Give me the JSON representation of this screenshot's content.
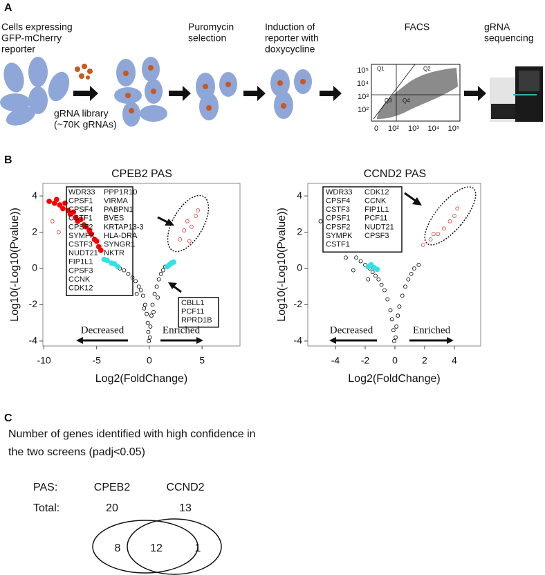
{
  "panel_a": {
    "label": "A",
    "step_cells": [
      "Cells expressing",
      "GFP-mCherry",
      "reporter"
    ],
    "library": [
      "gRNA library",
      "(~70K gRNAs)"
    ],
    "step_puromycin": [
      "Puromycin",
      "selection"
    ],
    "step_induction": [
      "Induction of",
      "reporter with",
      "doxycycline"
    ],
    "facs": {
      "title": "FACS",
      "quadrants": [
        "Q1",
        "Q2",
        "Q3",
        "Q4"
      ],
      "x_tick_labels": [
        "0",
        "10²",
        "10³",
        "10⁴",
        "10⁵"
      ],
      "y_tick_labels": [
        "10⁵",
        "10⁴",
        "10³",
        "10²"
      ]
    },
    "step_sequencing": [
      "gRNA",
      "sequencing"
    ]
  },
  "panel_b_label": "B",
  "chart_data": [
    {
      "type": "scatter",
      "title": "CPEB2 PAS",
      "x_label": "Log2(FoldChange)",
      "y_label": "Log10(-Log10(Pvalue))",
      "xlim": [
        -10.1,
        8.6
      ],
      "ylim": [
        -4.27,
        4.69
      ],
      "xticks": [
        -10,
        -5,
        0,
        5
      ],
      "yticks": [
        -4,
        -2,
        0,
        2,
        4
      ],
      "series": [
        {
          "color": "#000000",
          "marker": "open",
          "x": [
            -0.05,
            -0.1,
            -0.15,
            -0.25,
            -0.4,
            -0.6,
            -0.8,
            -1.0,
            -1.3,
            -1.6,
            -2.0,
            -2.4,
            -2.8,
            0.05,
            0.1,
            0.2,
            0.3,
            0.5,
            0.7,
            0.9,
            1.1,
            1.3,
            1.5,
            -1.2,
            0.8,
            -0.5,
            0.4
          ],
          "values": [
            -4,
            -3.5,
            -3,
            -2.5,
            -2,
            -1.5,
            -1.2,
            -1,
            -0.7,
            -0.5,
            -0.3,
            -0.1,
            0,
            -3.8,
            -3.2,
            -2.6,
            -2,
            -1.4,
            -1,
            -0.6,
            -0.3,
            -0.1,
            0.1,
            -1.4,
            -1.6,
            -2.2,
            -2.4
          ]
        },
        {
          "color": "#33e0e6",
          "marker": "filled",
          "x": [
            -3,
            -3.3,
            -3.6,
            -4,
            -4.3,
            1.7,
            1.9,
            2.1,
            2.3
          ],
          "values": [
            0.1,
            0.25,
            0.3,
            0.45,
            0.5,
            0.1,
            0.2,
            0.3,
            0.35
          ]
        },
        {
          "color": "#ff0000",
          "marker": "filled",
          "x": [
            -9.5,
            -9,
            -8.8,
            -8.5,
            -8.2,
            -8,
            -7.7,
            -7.5,
            -7.2,
            -7,
            -6.8,
            -6.5,
            -6.2,
            -6,
            -5.7,
            -5.5,
            -5.2,
            -5,
            -4.8,
            -4.6
          ],
          "values": [
            3.7,
            3.6,
            3.8,
            3.5,
            3.3,
            3.6,
            3.2,
            3.0,
            3.1,
            2.8,
            2.6,
            2.7,
            2.4,
            2.3,
            2.1,
            1.9,
            1.6,
            1.5,
            1.2,
            1.0
          ]
        },
        {
          "color": "#e04040",
          "marker": "open",
          "x": [
            2.9,
            3.3,
            3.6,
            4.0,
            4.4,
            4.6,
            3.8,
            -9.2,
            -8.6
          ],
          "values": [
            1.6,
            2.1,
            2.6,
            2.3,
            2.9,
            3.2,
            1.5,
            2.6,
            2.0
          ]
        }
      ],
      "gene_box": [
        [
          "WDR33",
          "CPSF1",
          "CPSF4",
          "CSTF1",
          "CPSF2",
          "SYMPK",
          "CSTF3",
          "NUDT21",
          "FIP1L1",
          "CPSF3",
          "CCNK",
          "CDK12"
        ],
        [
          "PPP1R10",
          "VIRMA",
          "PABPN1",
          "BVES",
          "KRTAP13-3",
          "HLA-DRA",
          "SYNGR1",
          "NKTR"
        ]
      ],
      "enriched_box": [
        "CBLL1",
        "PCF11",
        "RPRD1B"
      ],
      "decreased": "Decreased",
      "enriched": "Enriched"
    },
    {
      "type": "scatter",
      "title": "CCND2 PAS",
      "x_label": "Log2(FoldChange)",
      "y_label": "Log10(-Log10(Pvalue))",
      "xlim": [
        -5.86,
        5.77
      ],
      "ylim": [
        -4.27,
        4.69
      ],
      "xticks": [
        -4,
        -2,
        0,
        2,
        4
      ],
      "yticks": [
        -4,
        -2,
        0,
        2,
        4
      ],
      "series": [
        {
          "color": "#000000",
          "marker": "open",
          "x": [
            -0.05,
            -0.1,
            -0.2,
            -0.3,
            -0.5,
            -0.7,
            -0.9,
            -1.1,
            -1.3,
            -1.5,
            -1.7,
            -2,
            -2.3,
            -2.6,
            0.05,
            0.1,
            0.2,
            0.3,
            0.5,
            0.7,
            0.9,
            1.1,
            1.3,
            1.6,
            -1.8,
            -3.3,
            -5,
            -2.8
          ],
          "values": [
            -4,
            -3.4,
            -2.8,
            -2.3,
            -1.7,
            -1.2,
            -0.9,
            -0.6,
            -0.4,
            -0.2,
            0,
            0.2,
            0.4,
            0.6,
            -3.8,
            -3.2,
            -2.6,
            -2.1,
            -1.5,
            -1,
            -0.6,
            -0.3,
            0,
            0.2,
            -0.6,
            0.6,
            2.6,
            -0.1
          ]
        },
        {
          "color": "#33e0e6",
          "marker": "filled",
          "x": [
            -1.8,
            -1.6,
            -1.4,
            -1.2
          ],
          "values": [
            0.1,
            0.2,
            0.05,
            -0.05
          ]
        },
        {
          "color": "#e04040",
          "marker": "open",
          "x": [
            1.9,
            2.4,
            2.9,
            3.3,
            3.7,
            4.0,
            4.2,
            2.6
          ],
          "values": [
            1.3,
            1.6,
            1.9,
            2.2,
            2.6,
            2.9,
            3.3,
            1.9
          ]
        }
      ],
      "gene_box": [
        [
          "WDR33",
          "CPSF4",
          "CSTF3",
          "CPSF1",
          "CPSF2",
          "SYMPK",
          "CSTF1"
        ],
        [
          "CDK12",
          "CCNK",
          "FIP1L1",
          "PCF11",
          "NUDT21",
          "CPSF3"
        ]
      ],
      "decreased": "Decreased",
      "enriched": "Enriched"
    }
  ],
  "panel_c": {
    "label": "C",
    "heading": [
      "Number of genes identified with high confidence in",
      "the two screens (padj<0.05)"
    ],
    "table": {
      "rows": [
        [
          "PAS:",
          "CPEB2",
          "CCND2"
        ],
        [
          "Total:",
          20,
          13
        ]
      ]
    },
    "venn": {
      "left_only": 8,
      "both": 12,
      "right_only": 1
    }
  }
}
